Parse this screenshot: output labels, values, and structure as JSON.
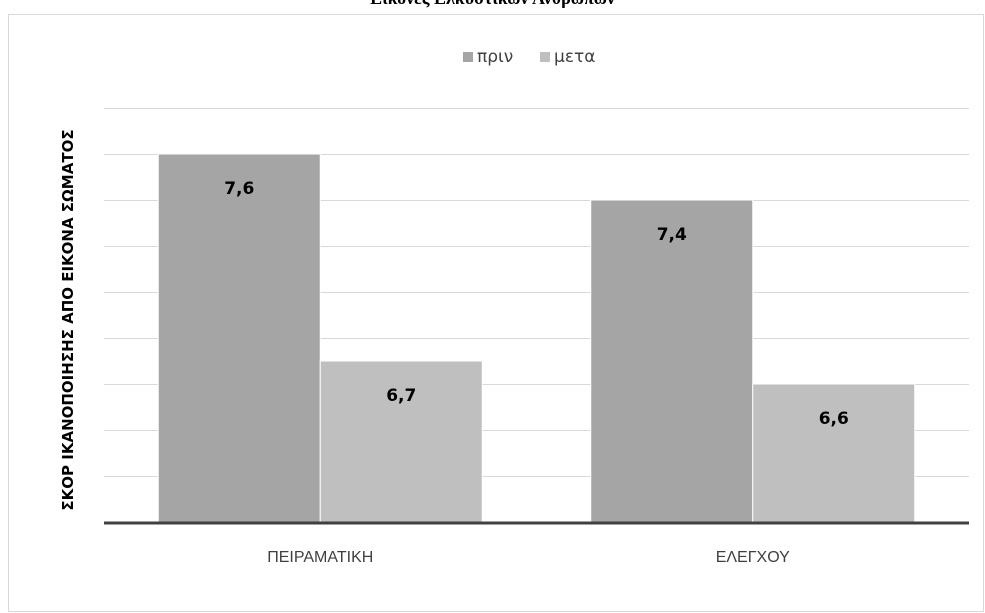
{
  "chart_data": {
    "type": "bar",
    "title": "Εικόνες Ελκυστικών Ανθρώπων",
    "xlabel": "",
    "ylabel": "ΣΚΟΡ ΙΚΑΝΟΠΟΙΗΣΗΣ ΑΠΟ ΕΙΚΟΝΑ ΣΩΜΑΤΟΣ",
    "categories": [
      "ΠΕΙΡΑΜΑΤΙΚΗ",
      "ΕΛΕΓΧΟΥ"
    ],
    "series": [
      {
        "name": "πριν",
        "values": [
          7.6,
          7.4
        ],
        "labels": [
          "7,6",
          "7,4"
        ],
        "color": "#a5a5a5"
      },
      {
        "name": "μετα",
        "values": [
          6.7,
          6.6
        ],
        "labels": [
          "6,7",
          "6,6"
        ],
        "color": "#bfbfbf"
      }
    ],
    "ylim": [
      6.0,
      7.8
    ],
    "ytick_step": 0.2,
    "grid": true,
    "legend_position": "top",
    "gridline_color": "#d9d9d9",
    "baseline_color": "#404040"
  }
}
